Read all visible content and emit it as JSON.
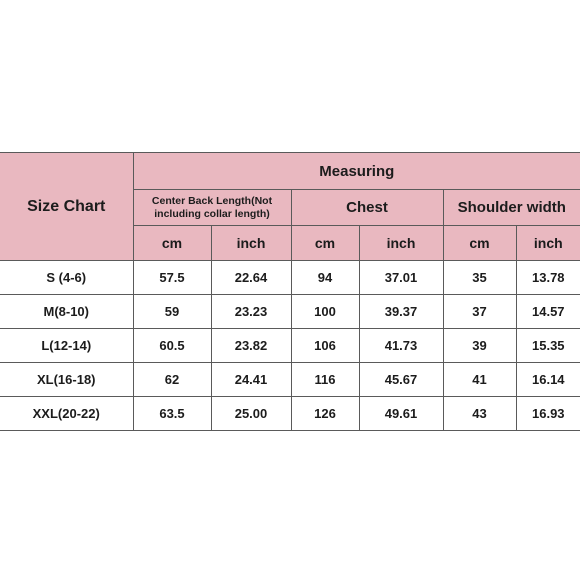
{
  "title": "Size Chart",
  "measuring": "Measuring",
  "groups": [
    {
      "label": "Center Back Length(Not including collar length)"
    },
    {
      "label": "Chest"
    },
    {
      "label": "Shoulder width"
    }
  ],
  "units": [
    "cm",
    "inch",
    "cm",
    "inch",
    "cm",
    "inch"
  ],
  "rows": [
    {
      "size": "S (4-6)",
      "values": [
        "57.5",
        "22.64",
        "94",
        "37.01",
        "35",
        "13.78"
      ]
    },
    {
      "size": "M(8-10)",
      "values": [
        "59",
        "23.23",
        "100",
        "39.37",
        "37",
        "14.57"
      ]
    },
    {
      "size": "L(12-14)",
      "values": [
        "60.5",
        "23.82",
        "106",
        "41.73",
        "39",
        "15.35"
      ]
    },
    {
      "size": "XL(16-18)",
      "values": [
        "62",
        "24.41",
        "116",
        "45.67",
        "41",
        "16.14"
      ]
    },
    {
      "size": "XXL(20-22)",
      "values": [
        "63.5",
        "25.00",
        "126",
        "49.61",
        "43",
        "16.93"
      ]
    }
  ],
  "colors": {
    "header_bg": "#e9b8c0",
    "border": "#5a5a5a"
  }
}
